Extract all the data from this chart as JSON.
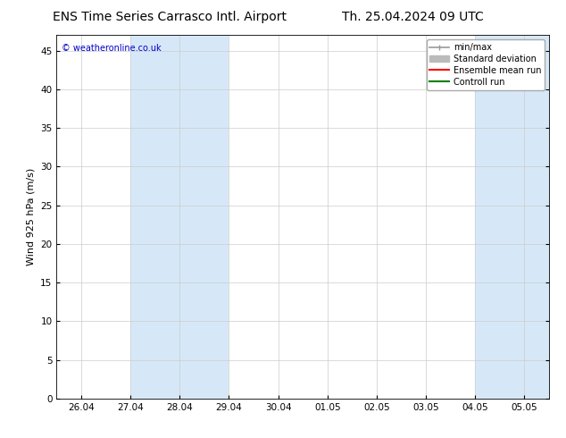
{
  "title_left": "ENS Time Series Carrasco Intl. Airport",
  "title_right": "Th. 25.04.2024 09 UTC",
  "ylabel": "Wind 925 hPa (m/s)",
  "watermark": "© weatheronline.co.uk",
  "watermark_color": "#0000cc",
  "ylim": [
    0,
    47
  ],
  "yticks": [
    0,
    5,
    10,
    15,
    20,
    25,
    30,
    35,
    40,
    45
  ],
  "x_tick_labels": [
    "26.04",
    "27.04",
    "28.04",
    "29.04",
    "30.04",
    "01.05",
    "02.05",
    "03.05",
    "04.05",
    "05.05"
  ],
  "shaded_bands": [
    {
      "xmin": 1,
      "xmax": 3,
      "color": "#d6e8f7"
    },
    {
      "xmin": 8,
      "xmax": 10,
      "color": "#d6e8f7"
    }
  ],
  "background_color": "#ffffff",
  "plot_bg_color": "#ffffff",
  "grid_color": "#cccccc",
  "legend_entries": [
    {
      "label": "min/max",
      "color": "#999999",
      "lw": 1.2
    },
    {
      "label": "Standard deviation",
      "color": "#bbbbbb",
      "lw": 4
    },
    {
      "label": "Ensemble mean run",
      "color": "#ff0000",
      "lw": 1.2
    },
    {
      "label": "Controll run",
      "color": "#008000",
      "lw": 1.2
    }
  ],
  "title_fontsize": 10,
  "axis_label_fontsize": 8,
  "tick_fontsize": 7.5,
  "legend_fontsize": 7
}
